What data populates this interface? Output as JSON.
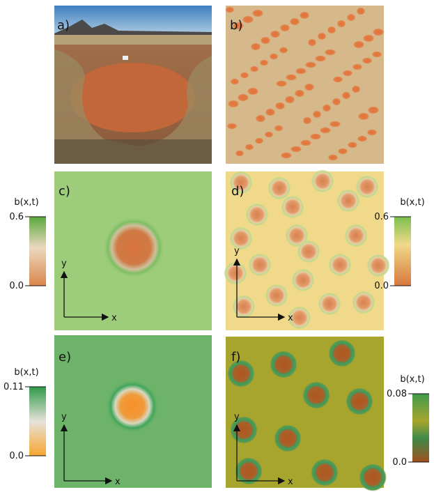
{
  "panels": [
    {
      "label": "a)"
    },
    {
      "label": "b)"
    },
    {
      "label": "c)",
      "x_label": "x",
      "y_label": "y"
    },
    {
      "label": "d)",
      "x_label": "x",
      "y_label": "y"
    },
    {
      "label": "e)",
      "x_label": "x",
      "y_label": "y"
    },
    {
      "label": "f)",
      "x_label": "x",
      "y_label": "y"
    }
  ],
  "colorbars": [
    {
      "title": "b(x,t)",
      "ticks": [
        {
          "value": 0,
          "label": "0.0"
        },
        0.6
      ]
    },
    {
      "title": "b(x,t)",
      "ticks": [
        {
          "value": 0,
          "label": "0.0"
        },
        0.6
      ]
    },
    {
      "title": "b(x,t)",
      "ticks": [
        {
          "value": 0,
          "label": "0.0"
        },
        0.11
      ]
    },
    {
      "title": "b(x,t)",
      "ticks": [
        {
          "value": 0,
          "label": "0.0"
        },
        0.08
      ]
    }
  ]
}
